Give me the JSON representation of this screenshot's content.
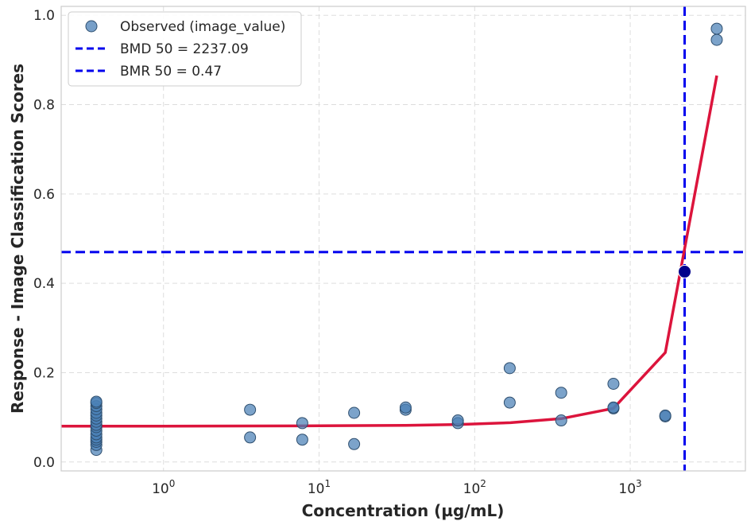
{
  "chart_data": {
    "type": "scatter",
    "xlabel": "Concentration (µg/mL)",
    "ylabel": "Response - Image Classification Scores",
    "xscale": "log",
    "xlim": [
      0.22,
      5500
    ],
    "ylim": [
      -0.02,
      1.02
    ],
    "grid": true,
    "legend_position": "top-left",
    "x_ticks": [
      {
        "value": 1,
        "base": "10",
        "exp": "0"
      },
      {
        "value": 10,
        "base": "10",
        "exp": "1"
      },
      {
        "value": 100,
        "base": "10",
        "exp": "2"
      },
      {
        "value": 1000,
        "base": "10",
        "exp": "3"
      }
    ],
    "y_ticks": [
      {
        "value": 0.0,
        "label": "0.0"
      },
      {
        "value": 0.2,
        "label": "0.2"
      },
      {
        "value": 0.4,
        "label": "0.4"
      },
      {
        "value": 0.6,
        "label": "0.6"
      },
      {
        "value": 0.8,
        "label": "0.8"
      },
      {
        "value": 1.0,
        "label": "1.0"
      }
    ],
    "legend": [
      {
        "label": "Observed (image_value)",
        "kind": "marker"
      },
      {
        "label": "BMD 50 = 2237.09",
        "kind": "dashed-line"
      },
      {
        "label": "BMR 50 = 0.47",
        "kind": "dashed-line"
      }
    ],
    "series": [
      {
        "name": "Observed (image_value)",
        "kind": "scatter",
        "color": "#4a7fb5",
        "points": [
          [
            0.37,
            0.027
          ],
          [
            0.37,
            0.038
          ],
          [
            0.37,
            0.045
          ],
          [
            0.37,
            0.05
          ],
          [
            0.37,
            0.055
          ],
          [
            0.37,
            0.062
          ],
          [
            0.37,
            0.07
          ],
          [
            0.37,
            0.078
          ],
          [
            0.37,
            0.083
          ],
          [
            0.37,
            0.09
          ],
          [
            0.37,
            0.097
          ],
          [
            0.37,
            0.104
          ],
          [
            0.37,
            0.11
          ],
          [
            0.37,
            0.118
          ],
          [
            0.37,
            0.125
          ],
          [
            0.37,
            0.132
          ],
          [
            0.37,
            0.135
          ],
          [
            3.6,
            0.055
          ],
          [
            3.6,
            0.117
          ],
          [
            7.8,
            0.05
          ],
          [
            7.8,
            0.087
          ],
          [
            16.8,
            0.04
          ],
          [
            16.8,
            0.11
          ],
          [
            36,
            0.117
          ],
          [
            36,
            0.122
          ],
          [
            78,
            0.087
          ],
          [
            78,
            0.093
          ],
          [
            168,
            0.133
          ],
          [
            168,
            0.21
          ],
          [
            360,
            0.093
          ],
          [
            360,
            0.155
          ],
          [
            780,
            0.12
          ],
          [
            780,
            0.122
          ],
          [
            780,
            0.175
          ],
          [
            1680,
            0.102
          ],
          [
            1680,
            0.104
          ],
          [
            3600,
            0.945
          ],
          [
            3600,
            0.97
          ]
        ]
      },
      {
        "name": "fit",
        "kind": "line",
        "color": "#dc143c",
        "points": [
          [
            0.22,
            0.08
          ],
          [
            1,
            0.08
          ],
          [
            10,
            0.081
          ],
          [
            36,
            0.082
          ],
          [
            80,
            0.084
          ],
          [
            170,
            0.088
          ],
          [
            360,
            0.097
          ],
          [
            780,
            0.12
          ],
          [
            1680,
            0.245
          ],
          [
            3600,
            0.865
          ]
        ]
      }
    ],
    "bmd": {
      "x": 2237.09,
      "y": 0.426,
      "color": "#0000ee",
      "marker_color": "#00008b"
    },
    "bmr": {
      "y": 0.47,
      "color": "#0000ee"
    }
  }
}
